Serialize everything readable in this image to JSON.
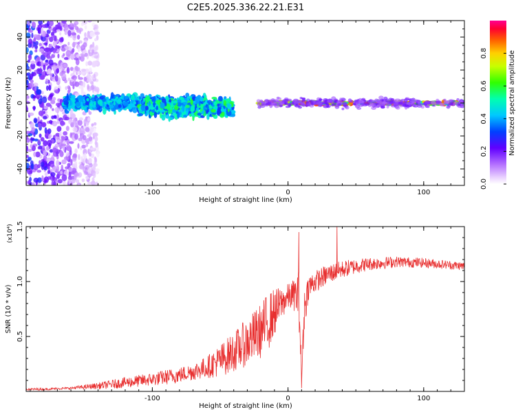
{
  "figure_title": "C2E5.2025.336.22.21.E31",
  "chart_data": [
    {
      "type": "heatmap",
      "name": "spectrogram",
      "title": "C2E5.2025.336.22.21.E31",
      "xlabel": "Height of straight line (km)",
      "ylabel": "Frequency (Hz)",
      "xlim": [
        -193,
        130
      ],
      "ylim": [
        -50,
        50
      ],
      "x_ticks": [
        -100,
        0,
        100
      ],
      "x_tick_labels": [
        "-100",
        "0",
        "100"
      ],
      "y_ticks": [
        -40,
        -20,
        0,
        20,
        40
      ],
      "y_tick_labels": [
        "-40",
        "-20",
        "0",
        "20",
        "40"
      ],
      "colorbar": {
        "label": "Normalized spectral amplitude",
        "range": [
          0,
          1
        ],
        "ticks": [
          0.0,
          0.2,
          0.4,
          0.6,
          0.8
        ],
        "tick_labels": [
          "0.0",
          "0.2",
          "0.4",
          "0.6",
          "0.8"
        ],
        "colormap": "rainbow (white-violet-blue-cyan-green-yellow-orange-red-magenta)"
      },
      "regions": [
        {
          "x_range": [
            -193,
            -140
          ],
          "freq_center": 0,
          "freq_halfwidth": 50,
          "amplitude": "0.05-0.3",
          "description": "scattered broadband"
        },
        {
          "x_range": [
            -165,
            -60
          ],
          "freq_center": 0,
          "freq_halfwidth": 6,
          "amplitude": "0.3-0.5"
        },
        {
          "x_range": [
            -110,
            -40
          ],
          "freq_center": -3,
          "freq_halfwidth": 7,
          "amplitude": "0.3-0.6"
        },
        {
          "x_range": [
            -22,
            130
          ],
          "freq_center": 0,
          "freq_halfwidth": 1.5,
          "amplitude": "0.5-0.95",
          "description": "narrow line near 0 Hz"
        }
      ]
    },
    {
      "type": "line",
      "name": "snr",
      "xlabel": "Height of straight line (km)",
      "ylabel": "SNR (10 * v/v)",
      "y_multiplier": "(x10⁴)",
      "xlim": [
        -193,
        130
      ],
      "ylim": [
        0,
        1.5
      ],
      "x_ticks": [
        -100,
        0,
        100
      ],
      "x_tick_labels": [
        "-100",
        "0",
        "100"
      ],
      "y_ticks": [
        0.5,
        1.0,
        1.5
      ],
      "y_tick_labels": [
        "0.5",
        "1.0",
        "1.5"
      ],
      "series": [
        {
          "name": "SNR",
          "color": "#e83030",
          "x": [
            -193,
            -180,
            -160,
            -140,
            -120,
            -100,
            -90,
            -80,
            -70,
            -60,
            -50,
            -40,
            -30,
            -20,
            -15,
            -10,
            -5,
            0,
            5,
            8,
            10,
            12,
            15,
            20,
            30,
            40,
            50,
            60,
            80,
            100,
            120,
            130
          ],
          "y": [
            0.02,
            0.02,
            0.03,
            0.05,
            0.08,
            0.11,
            0.13,
            0.15,
            0.18,
            0.22,
            0.28,
            0.36,
            0.45,
            0.55,
            0.63,
            0.72,
            0.8,
            0.86,
            0.88,
            0.86,
            0.12,
            0.75,
            0.95,
            1.0,
            1.07,
            1.11,
            1.14,
            1.16,
            1.18,
            1.17,
            1.15,
            1.14
          ],
          "noise_amplitude": [
            0.01,
            0.01,
            0.01,
            0.03,
            0.05,
            0.06,
            0.07,
            0.07,
            0.08,
            0.1,
            0.15,
            0.18,
            0.22,
            0.25,
            0.27,
            0.22,
            0.15,
            0.12,
            0.15,
            0.25,
            0.1,
            0.2,
            0.12,
            0.1,
            0.09,
            0.08,
            0.07,
            0.06,
            0.05,
            0.045,
            0.04,
            0.04
          ]
        }
      ],
      "spikes": [
        {
          "x": 8,
          "y": 1.45
        },
        {
          "x": 36,
          "y": 1.5
        },
        {
          "x": 10,
          "y": 0.03
        }
      ]
    }
  ]
}
